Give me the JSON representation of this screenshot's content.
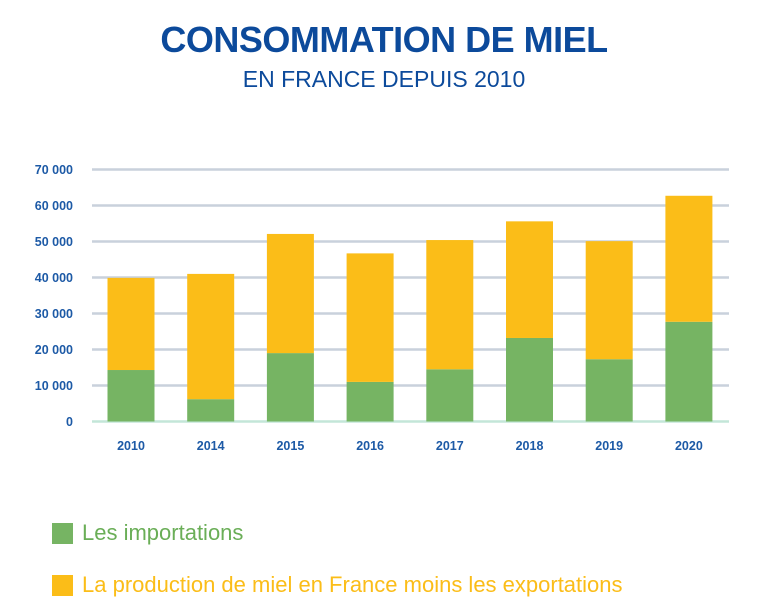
{
  "chart_data": {
    "type": "bar",
    "stacked": true,
    "title": "CONSOMMATION DE MIEL",
    "subtitle": "EN FRANCE DEPUIS 2010",
    "xlabel": "",
    "ylabel": "",
    "ylim": [
      0,
      70000
    ],
    "yticks": [
      0,
      10000,
      20000,
      30000,
      40000,
      50000,
      60000,
      70000
    ],
    "ytick_labels": [
      "0",
      "10 000",
      "20 000",
      "30 000",
      "40 000",
      "50 000",
      "60 000",
      "70 000"
    ],
    "grid": true,
    "legend_position": "bottom-left",
    "categories": [
      "2010",
      "2014",
      "2015",
      "2016",
      "2017",
      "2018",
      "2019",
      "2020"
    ],
    "series": [
      {
        "name": "Les importations",
        "color": "#76b463",
        "values": [
          14300,
          6200,
          19000,
          11000,
          14500,
          23200,
          17300,
          27700
        ]
      },
      {
        "name": "La production de miel en France moins les exportations",
        "color": "#fbbd18",
        "values": [
          25600,
          34800,
          33100,
          35700,
          35900,
          32400,
          32800,
          35000
        ]
      }
    ]
  },
  "colors": {
    "title": "#0c4a9b",
    "tick_text": "#1d5aa6",
    "grid": "#c9d1dc",
    "baseline": "#c3e6d8"
  }
}
